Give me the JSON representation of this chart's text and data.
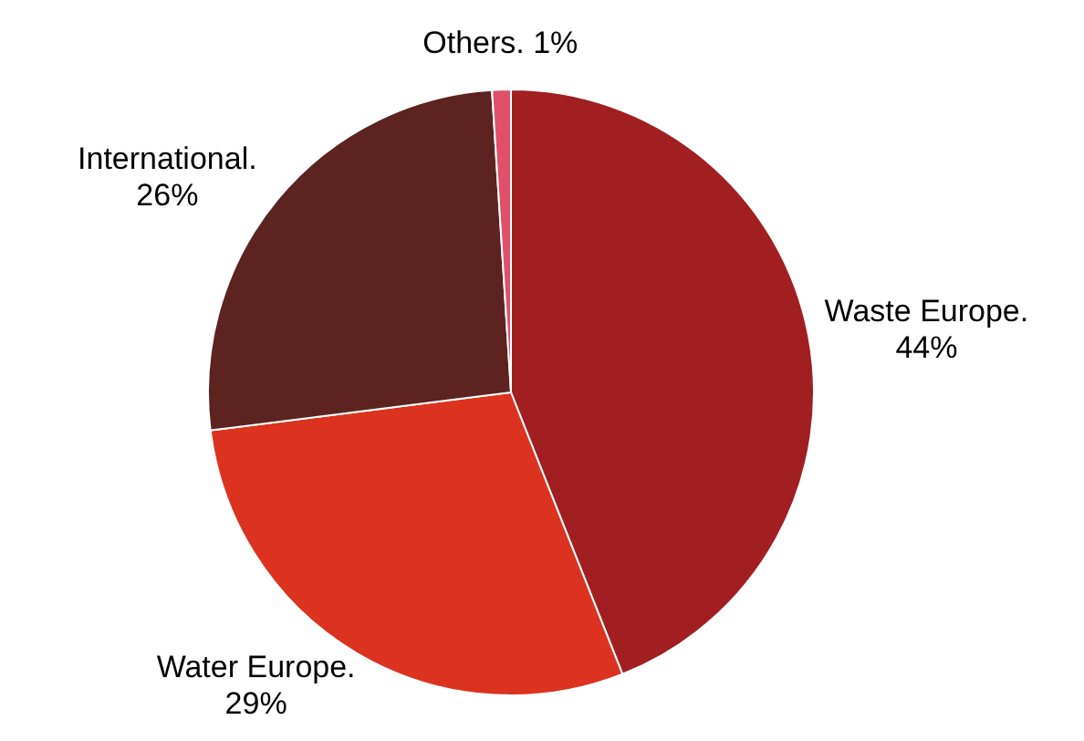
{
  "chart_data": {
    "type": "pie",
    "categories": [
      "Waste Europe.",
      "Water Europe.",
      "International.",
      "Others."
    ],
    "values": [
      44,
      29,
      26,
      1
    ],
    "value_labels": [
      "44%",
      "29%",
      "26%",
      "1%"
    ],
    "colors": [
      "#a11f21",
      "#dc3220",
      "#5c2320",
      "#e0506a"
    ]
  }
}
